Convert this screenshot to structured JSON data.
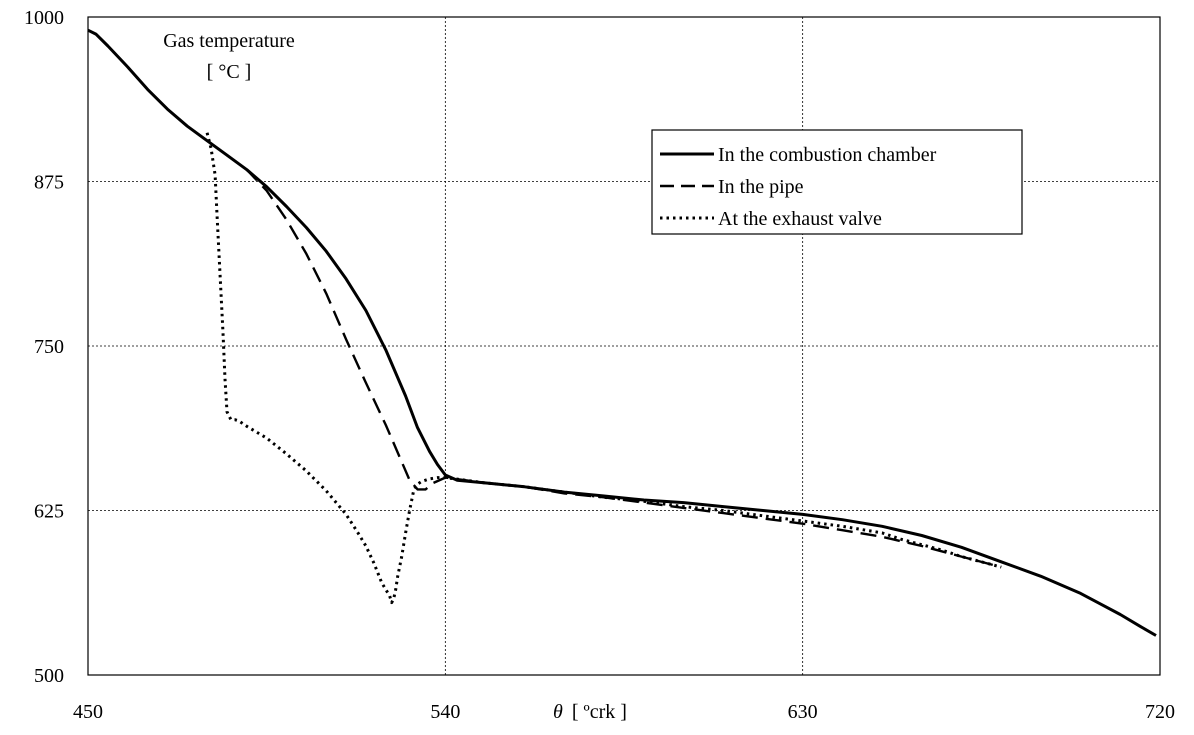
{
  "chart_data": {
    "type": "line",
    "title": "Gas temperature",
    "title_unit": "[ °C ]",
    "xlabel_symbol": "θ",
    "xlabel_unit": "[ ºcrk ]",
    "xlim": [
      450,
      720
    ],
    "ylim": [
      500,
      1000
    ],
    "x_ticks": [
      "450",
      "540",
      "630",
      "720"
    ],
    "y_ticks": [
      "500",
      "625",
      "750",
      "875",
      "1000"
    ],
    "grid": "on",
    "legend_position": "top-right",
    "series": [
      {
        "name": "In the combustion chamber",
        "style": "solid",
        "color": "#000000",
        "x": [
          450,
          452,
          455,
          460,
          465,
          470,
          475,
          480,
          485,
          490,
          495,
          500,
          505,
          510,
          515,
          520,
          525,
          530,
          533,
          536,
          538,
          540,
          543,
          550,
          560,
          570,
          580,
          590,
          600,
          610,
          620,
          630,
          640,
          650,
          660,
          670,
          680,
          690,
          700,
          705,
          710,
          715,
          719
        ],
        "values": [
          990,
          987,
          978,
          962,
          945,
          930,
          917,
          906,
          895,
          884,
          871,
          856,
          840,
          822,
          801,
          777,
          747,
          712,
          688,
          670,
          660,
          652,
          648,
          646,
          643,
          639,
          636,
          633,
          631,
          628,
          625,
          622,
          618,
          613,
          606,
          597,
          586,
          575,
          562,
          554,
          546,
          537,
          530
        ]
      },
      {
        "name": "In the pipe",
        "style": "dashed",
        "color": "#000000",
        "x": [
          480,
          485,
          490,
          495,
          500,
          505,
          510,
          515,
          520,
          525,
          529,
          531,
          533,
          535,
          537,
          540,
          545,
          550,
          560,
          570,
          580,
          590,
          600,
          610,
          620,
          630,
          640,
          650,
          660,
          670,
          680
        ],
        "values": [
          906,
          895,
          884,
          868,
          846,
          820,
          790,
          755,
          722,
          690,
          662,
          648,
          641,
          641,
          646,
          650,
          648,
          646,
          643,
          638,
          635,
          631,
          627,
          623,
          619,
          615,
          610,
          605,
          598,
          590,
          582
        ]
      },
      {
        "name": "At the exhaust valve",
        "style": "dotted",
        "color": "#000000",
        "x": [
          480,
          481,
          482,
          482.5,
          483,
          483.5,
          484,
          484.5,
          485,
          486,
          487,
          488,
          490,
          495,
          500,
          505,
          510,
          515,
          518,
          520,
          522,
          524,
          526,
          526.5,
          527,
          527.5,
          528,
          529,
          530,
          531,
          532,
          533,
          534,
          536,
          538,
          540,
          545,
          550,
          560,
          570,
          580,
          590,
          600,
          610,
          620,
          630,
          640,
          650,
          655,
          660,
          665,
          670,
          675,
          680
        ],
        "values": [
          912,
          900,
          880,
          850,
          820,
          790,
          760,
          725,
          700,
          694,
          694,
          693,
          689,
          680,
          668,
          655,
          640,
          622,
          608,
          598,
          585,
          570,
          560,
          555,
          558,
          565,
          575,
          590,
          608,
          625,
          640,
          645,
          647,
          649,
          650,
          650,
          648,
          646,
          643,
          639,
          635,
          632,
          628,
          625,
          621,
          617,
          613,
          608,
          603,
          599,
          595,
          590,
          586,
          582
        ]
      }
    ]
  }
}
